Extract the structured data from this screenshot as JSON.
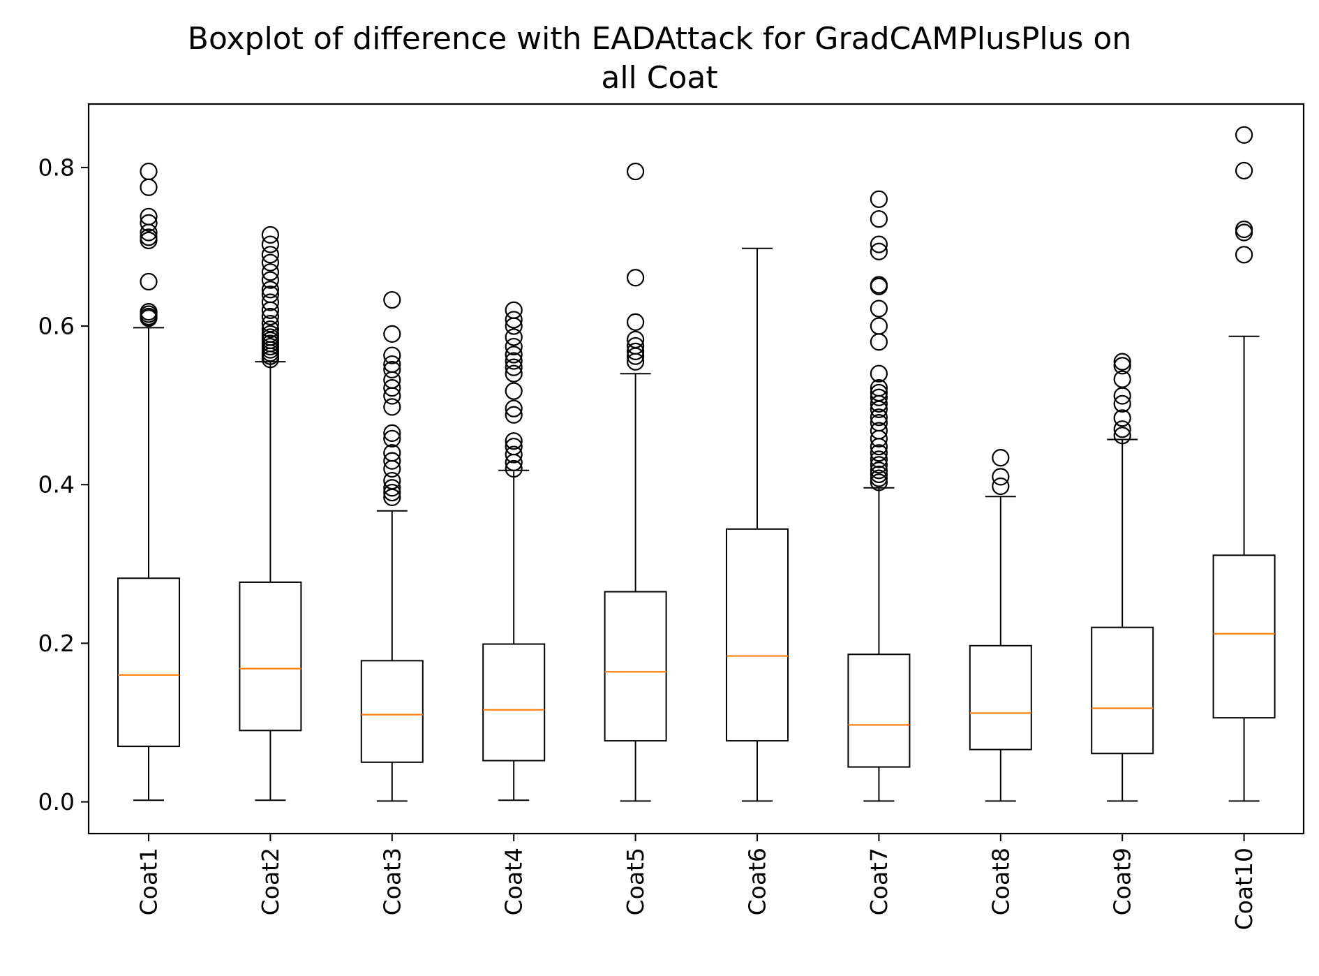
{
  "chart_data": {
    "type": "boxplot",
    "title": [
      "Boxplot of difference with EADAttack for GradCAMPlusPlus on",
      "all Coat"
    ],
    "xlabel": "",
    "ylabel": "",
    "ylim": [
      -0.04,
      0.88
    ],
    "yticks": [
      0.0,
      0.2,
      0.4,
      0.6,
      0.8
    ],
    "ytick_labels": [
      "0.0",
      "0.2",
      "0.4",
      "0.6",
      "0.8"
    ],
    "grid": false,
    "legend": "none",
    "colors": {
      "box": "#000000",
      "median": "#ff7f0e",
      "flier": "#000000"
    },
    "categories": [
      "Coat1",
      "Coat2",
      "Coat3",
      "Coat4",
      "Coat5",
      "Coat6",
      "Coat7",
      "Coat8",
      "Coat9",
      "Coat10"
    ],
    "boxes": [
      {
        "category": "Coat1",
        "whisker_low": 0.002,
        "q1": 0.07,
        "median": 0.16,
        "q3": 0.282,
        "whisker_high": 0.598,
        "outliers": [
          0.61,
          0.612,
          0.615,
          0.618,
          0.656,
          0.708,
          0.712,
          0.718,
          0.73,
          0.738,
          0.775,
          0.795
        ]
      },
      {
        "category": "Coat2",
        "whisker_low": 0.002,
        "q1": 0.09,
        "median": 0.168,
        "q3": 0.277,
        "whisker_high": 0.555,
        "outliers": [
          0.558,
          0.562,
          0.566,
          0.57,
          0.574,
          0.578,
          0.582,
          0.586,
          0.59,
          0.596,
          0.603,
          0.612,
          0.62,
          0.63,
          0.64,
          0.646,
          0.658,
          0.668,
          0.68,
          0.69,
          0.703,
          0.715
        ]
      },
      {
        "category": "Coat3",
        "whisker_low": 0.001,
        "q1": 0.05,
        "median": 0.11,
        "q3": 0.178,
        "whisker_high": 0.367,
        "outliers": [
          0.384,
          0.39,
          0.396,
          0.405,
          0.42,
          0.43,
          0.44,
          0.458,
          0.465,
          0.498,
          0.512,
          0.522,
          0.532,
          0.545,
          0.552,
          0.563,
          0.59,
          0.633
        ]
      },
      {
        "category": "Coat4",
        "whisker_low": 0.002,
        "q1": 0.052,
        "median": 0.116,
        "q3": 0.199,
        "whisker_high": 0.418,
        "outliers": [
          0.42,
          0.428,
          0.438,
          0.448,
          0.455,
          0.488,
          0.496,
          0.518,
          0.54,
          0.548,
          0.556,
          0.564,
          0.574,
          0.586,
          0.6,
          0.608,
          0.62
        ]
      },
      {
        "category": "Coat5",
        "whisker_low": 0.001,
        "q1": 0.077,
        "median": 0.164,
        "q3": 0.265,
        "whisker_high": 0.54,
        "outliers": [
          0.555,
          0.562,
          0.568,
          0.575,
          0.583,
          0.605,
          0.661,
          0.795
        ]
      },
      {
        "category": "Coat6",
        "whisker_low": 0.001,
        "q1": 0.077,
        "median": 0.184,
        "q3": 0.344,
        "whisker_high": 0.698,
        "outliers": []
      },
      {
        "category": "Coat7",
        "whisker_low": 0.001,
        "q1": 0.044,
        "median": 0.097,
        "q3": 0.186,
        "whisker_high": 0.396,
        "outliers": [
          0.403,
          0.408,
          0.413,
          0.418,
          0.425,
          0.432,
          0.44,
          0.448,
          0.458,
          0.468,
          0.478,
          0.485,
          0.495,
          0.502,
          0.51,
          0.516,
          0.522,
          0.54,
          0.58,
          0.6,
          0.622,
          0.65,
          0.652,
          0.694,
          0.703,
          0.735,
          0.76
        ]
      },
      {
        "category": "Coat8",
        "whisker_low": 0.001,
        "q1": 0.066,
        "median": 0.112,
        "q3": 0.197,
        "whisker_high": 0.385,
        "outliers": [
          0.398,
          0.41,
          0.434
        ]
      },
      {
        "category": "Coat9",
        "whisker_low": 0.001,
        "q1": 0.061,
        "median": 0.118,
        "q3": 0.22,
        "whisker_high": 0.457,
        "outliers": [
          0.462,
          0.47,
          0.484,
          0.502,
          0.512,
          0.533,
          0.55,
          0.555
        ]
      },
      {
        "category": "Coat10",
        "whisker_low": 0.001,
        "q1": 0.106,
        "median": 0.212,
        "q3": 0.311,
        "whisker_high": 0.587,
        "outliers": [
          0.69,
          0.718,
          0.722,
          0.796,
          0.841
        ]
      }
    ]
  }
}
